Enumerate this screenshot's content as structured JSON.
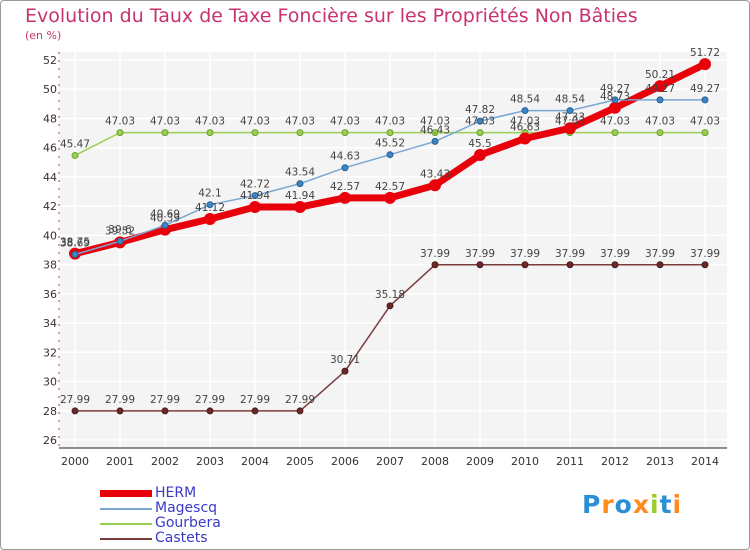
{
  "header": {
    "title": "Evolution du Taux de Taxe Foncière sur les Propriétés Non Bâties",
    "unit": "(en %)"
  },
  "logo": {
    "letters": [
      "P",
      "r",
      "o",
      "x",
      "i",
      "t",
      "i"
    ],
    "colors": [
      "#2a8fd6",
      "#ff8a1e",
      "#2a8fd6",
      "#ff8a1e",
      "#9ccc2a",
      "#2a8fd6",
      "#ff8a1e"
    ]
  },
  "chart_data": {
    "type": "line",
    "title": "Evolution du Taux de Taxe Foncière sur les Propriétés Non Bâties",
    "ylabel": "(en %)",
    "xlabel": "",
    "categories": [
      "2000",
      "2001",
      "2002",
      "2003",
      "2004",
      "2005",
      "2006",
      "2007",
      "2008",
      "2009",
      "2010",
      "2011",
      "2012",
      "2013",
      "2014"
    ],
    "ylim": [
      26,
      52
    ],
    "yticks": [
      26,
      28,
      30,
      32,
      34,
      36,
      38,
      40,
      42,
      44,
      46,
      48,
      50,
      52
    ],
    "grid": true,
    "legend_position": "bottom-left",
    "series": [
      {
        "name": "HERM",
        "color": "#e8000b",
        "values": [
          38.75,
          39.52,
          40.39,
          41.12,
          41.94,
          41.94,
          42.57,
          42.57,
          43.43,
          45.5,
          46.63,
          47.33,
          48.73,
          50.21,
          51.72
        ],
        "labels": [
          "38.75",
          "39.52",
          "40.39",
          "41.12",
          "41.94",
          "41.94",
          "42.57",
          "42.57",
          "43.43",
          "45.5",
          "46.63",
          "47.33",
          "48.73",
          "50.21",
          "51.72"
        ]
      },
      {
        "name": "Magescq",
        "color": "#7aa6d2",
        "values": [
          38.69,
          39.6,
          40.69,
          42.1,
          42.72,
          43.54,
          44.63,
          45.52,
          46.43,
          47.82,
          48.54,
          48.54,
          49.27,
          49.27,
          49.27
        ],
        "labels": [
          "38.69",
          "39.6",
          "40.69",
          "42.1",
          "42.72",
          "43.54",
          "44.63",
          "45.52",
          "46.43",
          "47.82",
          "48.54",
          "48.54",
          "49.27",
          "49.27",
          "49.27"
        ]
      },
      {
        "name": "Gourbera",
        "color": "#9ad052",
        "values": [
          45.47,
          47.03,
          47.03,
          47.03,
          47.03,
          47.03,
          47.03,
          47.03,
          47.03,
          47.03,
          47.03,
          47.03,
          47.03,
          47.03,
          47.03
        ],
        "labels": [
          "45.47",
          "47.03",
          "47.03",
          "47.03",
          "47.03",
          "47.03",
          "47.03",
          "47.03",
          "47.03",
          "47.03",
          "47.03",
          "47.03",
          "47.03",
          "47.03",
          "47.03"
        ]
      },
      {
        "name": "Castets",
        "color": "#7a3c3c",
        "values": [
          27.99,
          27.99,
          27.99,
          27.99,
          27.99,
          27.99,
          30.71,
          35.18,
          37.99,
          37.99,
          37.99,
          37.99,
          37.99,
          37.99,
          37.99
        ],
        "labels": [
          "27.99",
          "27.99",
          "27.99",
          "27.99",
          "27.99",
          "27.99",
          "30.71",
          "35.18",
          "37.99",
          "37.99",
          "37.99",
          "37.99",
          "37.99",
          "37.99",
          "37.99"
        ]
      }
    ]
  }
}
